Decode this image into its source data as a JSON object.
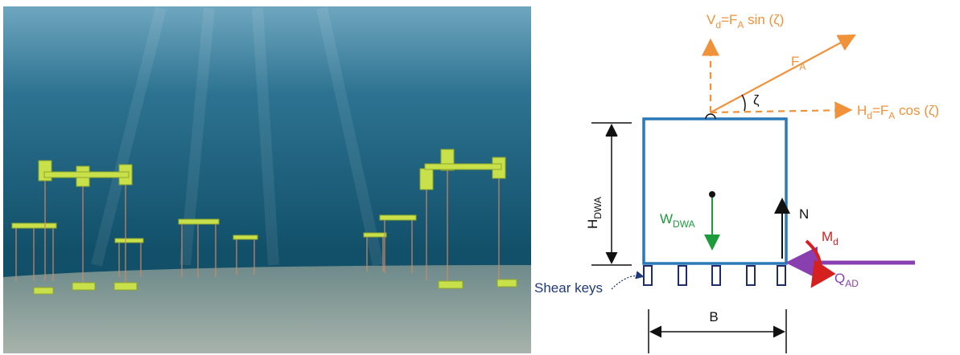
{
  "diagram": {
    "labels": {
      "vertical_force": [
        {
          "text": "V"
        },
        {
          "sub": "d"
        },
        {
          "text": "=F"
        },
        {
          "sub": "A"
        },
        {
          "text": " sin (ζ)"
        }
      ],
      "anchor_force": [
        {
          "text": "F"
        },
        {
          "sub": "A"
        }
      ],
      "angle": [
        {
          "text": "ζ"
        }
      ],
      "horizontal_force": [
        {
          "text": "H"
        },
        {
          "sub": "d"
        },
        {
          "text": "=F"
        },
        {
          "sub": "A"
        },
        {
          "text": " cos (ζ)"
        }
      ],
      "height": [
        {
          "text": "H"
        },
        {
          "sub": "DWA"
        }
      ],
      "weight": [
        {
          "text": "W"
        },
        {
          "sub": "DWA"
        }
      ],
      "normal": [
        {
          "text": "N"
        }
      ],
      "moment": [
        {
          "text": "M"
        },
        {
          "sub": "d"
        }
      ],
      "shear_force": [
        {
          "text": "Q"
        },
        {
          "sub": "AD"
        }
      ],
      "shear_keys": [
        {
          "text": "Shear keys"
        }
      ],
      "width": [
        {
          "text": "B"
        }
      ]
    }
  }
}
